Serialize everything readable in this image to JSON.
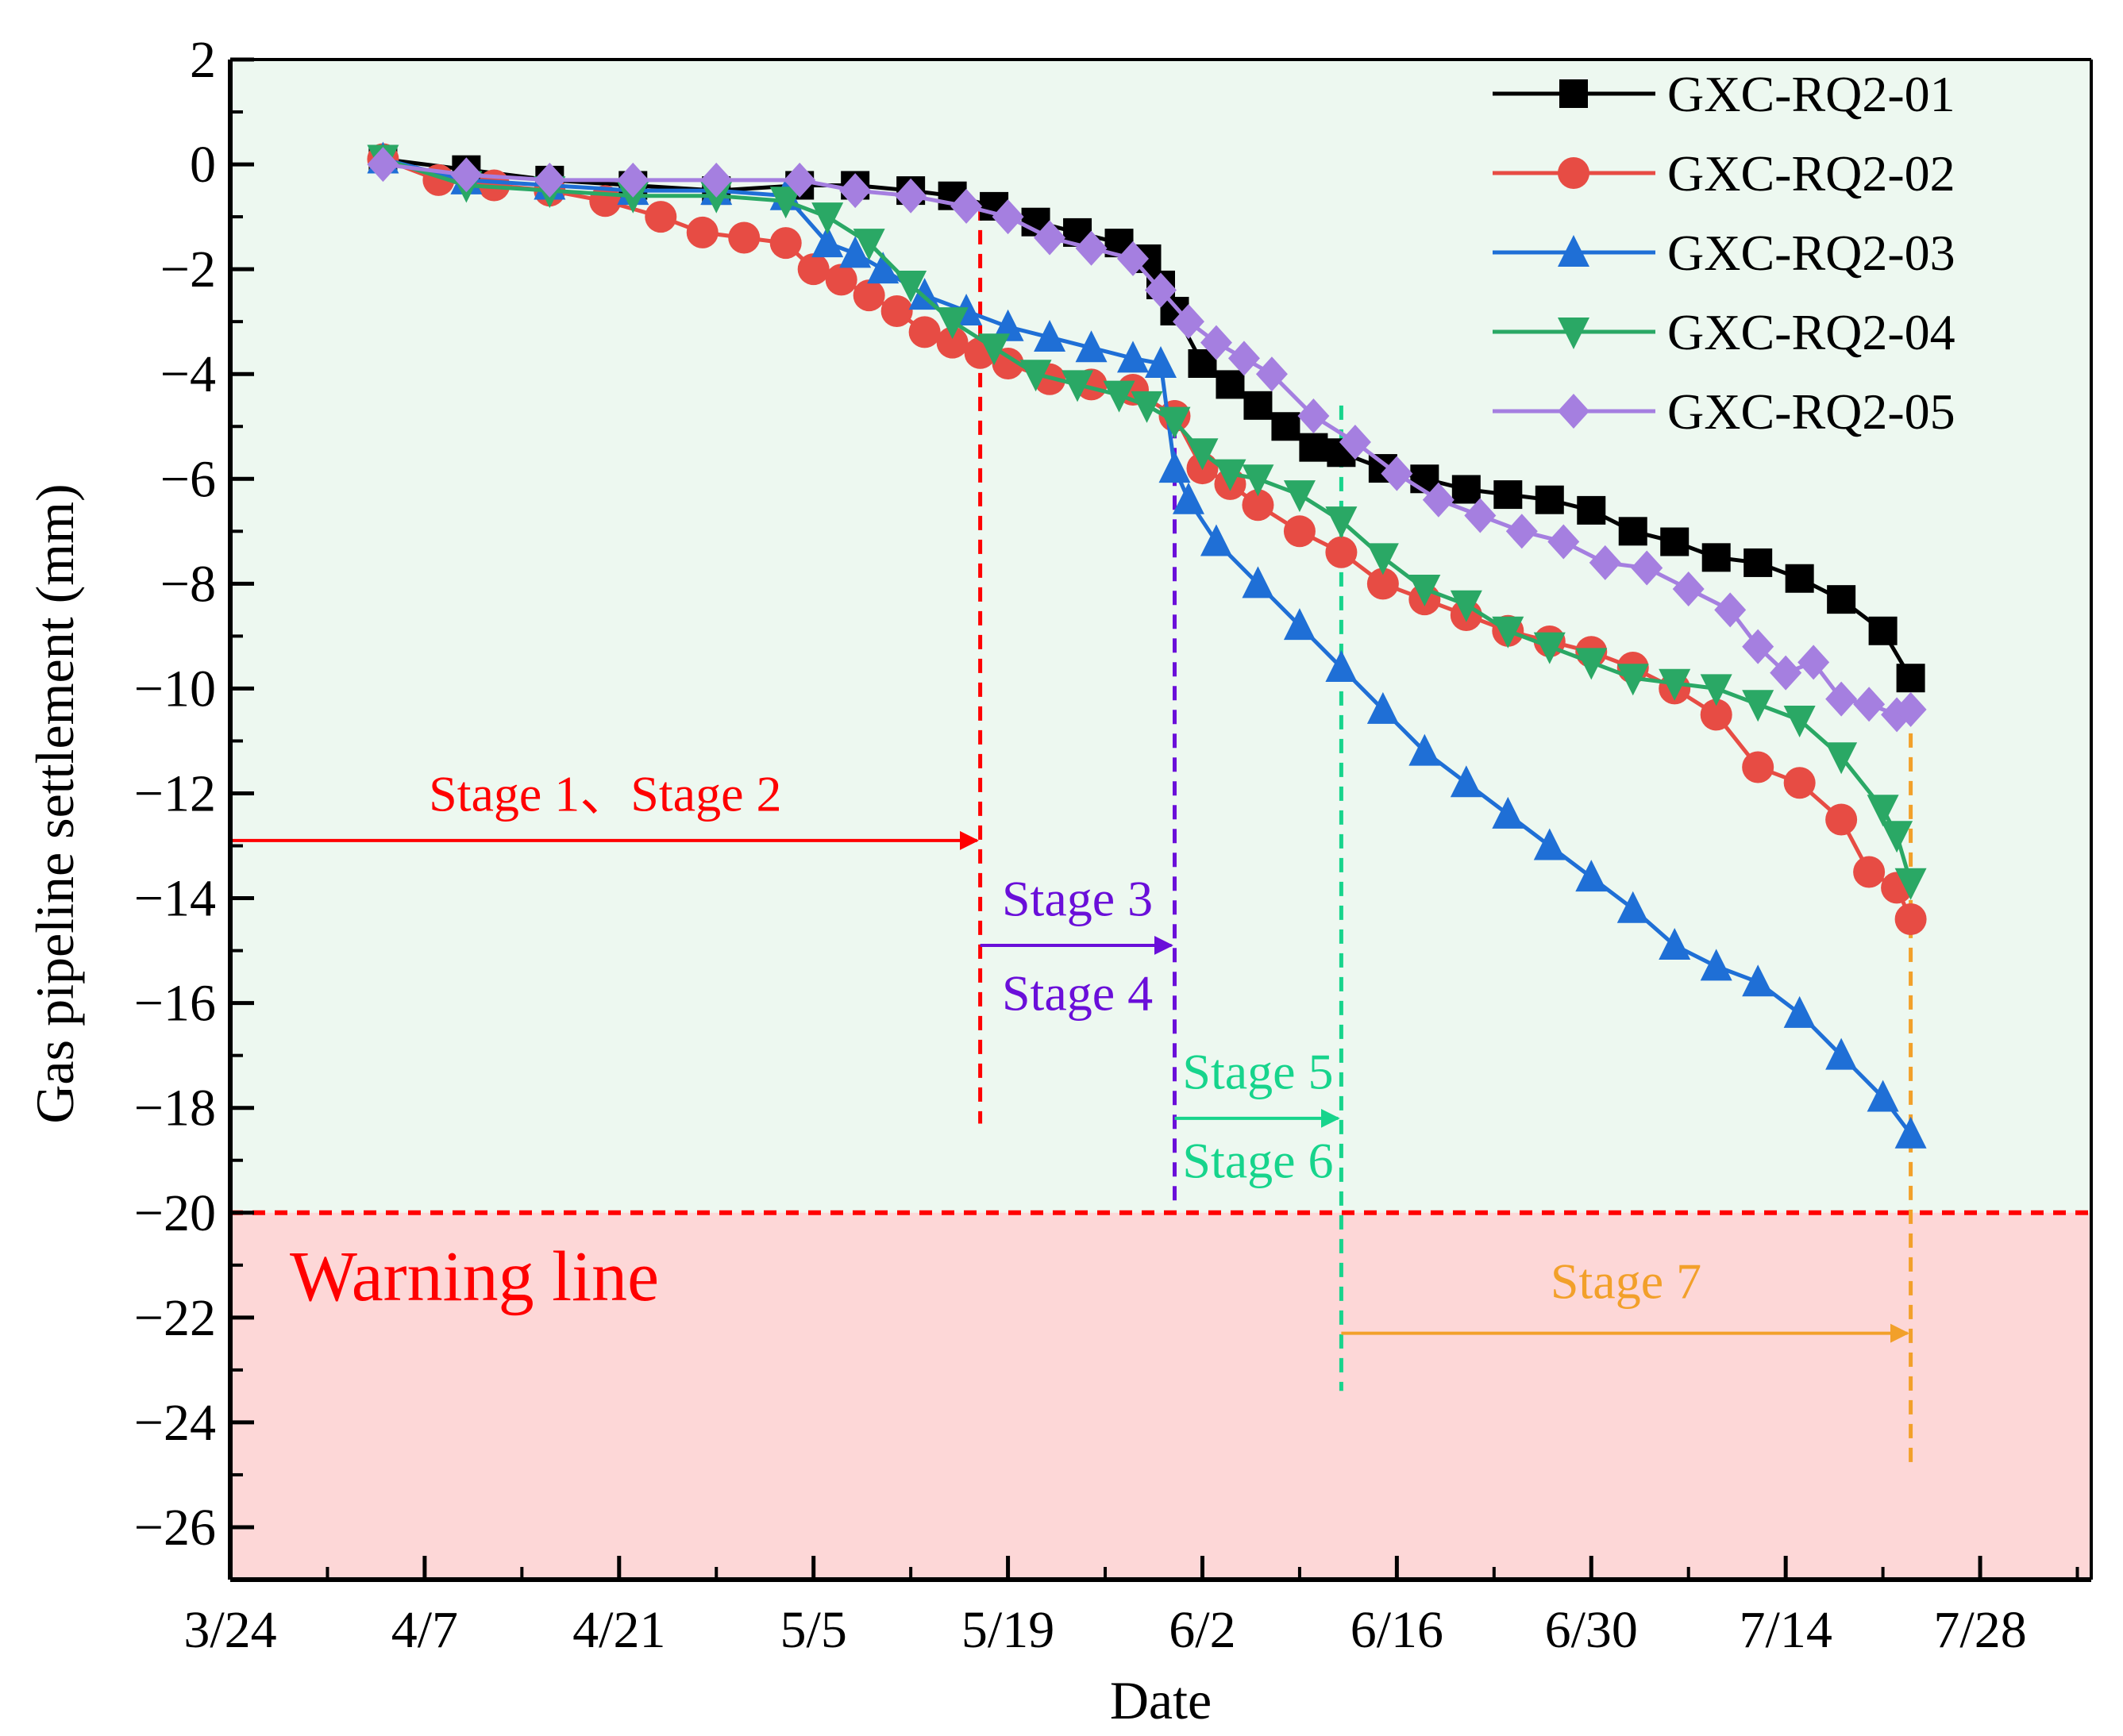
{
  "chart_data": {
    "type": "line",
    "title": "",
    "xlabel": "Date",
    "ylabel": "Gas pipeline settlement (mm)",
    "x_ticks": [
      "3/24",
      "4/7",
      "4/21",
      "5/5",
      "5/19",
      "6/2",
      "6/16",
      "6/30",
      "7/14",
      "7/28"
    ],
    "y_ticks": [
      "2",
      "0",
      "−2",
      "−4",
      "−6",
      "−8",
      "−10",
      "−12",
      "−14",
      "−16",
      "−18",
      "−20",
      "−22",
      "−24",
      "−26"
    ],
    "xlim": [
      "2021-03-24",
      "2021-08-05"
    ],
    "ylim": [
      -27,
      2
    ],
    "grid": false,
    "legend_position": "top-right",
    "background_zones": [
      {
        "name": "safe",
        "from": -20,
        "to": 2,
        "color": "#edf8f0"
      },
      {
        "name": "warning",
        "from": -27,
        "to": -20,
        "color": "#fdd7d7"
      }
    ],
    "warning_line": {
      "y": -20,
      "label": "Warning line",
      "color": "#ff0000"
    },
    "stages": [
      {
        "label": "Stage 1、Stage 2",
        "from": "2021-03-24",
        "to": "2021-05-17",
        "arrow_y": -12.9,
        "label_y": -12.0,
        "color": "#ff0000",
        "line_ymin": -18.3
      },
      {
        "label": "Stage 3",
        "label2": "Stage 4",
        "from": "2021-05-17",
        "to": "2021-05-31",
        "arrow_y": -14.9,
        "label_y": -14.0,
        "label2_y": -15.8,
        "color": "#6a0fd9",
        "line_ymin": -19.8
      },
      {
        "label": "Stage 5",
        "label2": "Stage 6",
        "from": "2021-05-31",
        "to": "2021-06-12",
        "arrow_y": -18.2,
        "label_y": -17.3,
        "label2_y": -19.0,
        "color": "#17d48c",
        "line_ymin": -23.4
      },
      {
        "label": "Stage 7",
        "from": "2021-06-12",
        "to": "2021-07-23",
        "arrow_y": -22.3,
        "label_y": -21.3,
        "color": "#f2a02a",
        "line_ymin": -24.8
      }
    ],
    "series": [
      {
        "name": "GXC-RQ2-01",
        "color": "#000000",
        "marker": "square",
        "x": [
          "2021-04-04",
          "2021-04-10",
          "2021-04-16",
          "2021-04-22",
          "2021-04-28",
          "2021-05-04",
          "2021-05-08",
          "2021-05-12",
          "2021-05-15",
          "2021-05-18",
          "2021-05-21",
          "2021-05-24",
          "2021-05-27",
          "2021-05-29",
          "2021-05-30",
          "2021-05-31",
          "2021-06-02",
          "2021-06-04",
          "2021-06-06",
          "2021-06-08",
          "2021-06-10",
          "2021-06-12",
          "2021-06-15",
          "2021-06-18",
          "2021-06-21",
          "2021-06-24",
          "2021-06-27",
          "2021-06-30",
          "2021-07-03",
          "2021-07-06",
          "2021-07-09",
          "2021-07-12",
          "2021-07-15",
          "2021-07-18",
          "2021-07-21",
          "2021-07-23"
        ],
        "y": [
          0.1,
          -0.1,
          -0.3,
          -0.4,
          -0.5,
          -0.4,
          -0.4,
          -0.5,
          -0.6,
          -0.8,
          -1.1,
          -1.3,
          -1.5,
          -1.8,
          -2.3,
          -2.8,
          -3.8,
          -4.2,
          -4.6,
          -5.0,
          -5.4,
          -5.5,
          -5.8,
          -6.0,
          -6.2,
          -6.3,
          -6.4,
          -6.6,
          -7.0,
          -7.2,
          -7.5,
          -7.6,
          -7.9,
          -8.3,
          -8.9,
          -9.8
        ]
      },
      {
        "name": "GXC-RQ2-02",
        "color": "#e74c44",
        "marker": "circle",
        "x": [
          "2021-04-04",
          "2021-04-08",
          "2021-04-12",
          "2021-04-16",
          "2021-04-20",
          "2021-04-24",
          "2021-04-27",
          "2021-04-30",
          "2021-05-03",
          "2021-05-05",
          "2021-05-07",
          "2021-05-09",
          "2021-05-11",
          "2021-05-13",
          "2021-05-15",
          "2021-05-17",
          "2021-05-19",
          "2021-05-22",
          "2021-05-25",
          "2021-05-28",
          "2021-05-31",
          "2021-06-02",
          "2021-06-04",
          "2021-06-06",
          "2021-06-09",
          "2021-06-12",
          "2021-06-15",
          "2021-06-18",
          "2021-06-21",
          "2021-06-24",
          "2021-06-27",
          "2021-06-30",
          "2021-07-03",
          "2021-07-06",
          "2021-07-09",
          "2021-07-12",
          "2021-07-15",
          "2021-07-18",
          "2021-07-20",
          "2021-07-22",
          "2021-07-23"
        ],
        "y": [
          0.1,
          -0.3,
          -0.4,
          -0.5,
          -0.7,
          -1.0,
          -1.3,
          -1.4,
          -1.5,
          -2.0,
          -2.2,
          -2.5,
          -2.8,
          -3.2,
          -3.4,
          -3.6,
          -3.8,
          -4.1,
          -4.2,
          -4.3,
          -4.8,
          -5.8,
          -6.1,
          -6.5,
          -7.0,
          -7.4,
          -8.0,
          -8.3,
          -8.6,
          -8.9,
          -9.1,
          -9.3,
          -9.6,
          -10.0,
          -10.5,
          -11.5,
          -11.8,
          -12.5,
          -13.5,
          -13.8,
          -14.4
        ]
      },
      {
        "name": "GXC-RQ2-03",
        "color": "#1f6fd6",
        "marker": "triangle-up",
        "x": [
          "2021-04-04",
          "2021-04-10",
          "2021-04-16",
          "2021-04-22",
          "2021-04-28",
          "2021-05-03",
          "2021-05-06",
          "2021-05-08",
          "2021-05-10",
          "2021-05-13",
          "2021-05-16",
          "2021-05-19",
          "2021-05-22",
          "2021-05-25",
          "2021-05-28",
          "2021-05-30",
          "2021-05-31",
          "2021-06-01",
          "2021-06-03",
          "2021-06-06",
          "2021-06-09",
          "2021-06-12",
          "2021-06-15",
          "2021-06-18",
          "2021-06-21",
          "2021-06-24",
          "2021-06-27",
          "2021-06-30",
          "2021-07-03",
          "2021-07-06",
          "2021-07-09",
          "2021-07-12",
          "2021-07-15",
          "2021-07-18",
          "2021-07-21",
          "2021-07-23"
        ],
        "y": [
          0.1,
          -0.3,
          -0.4,
          -0.5,
          -0.5,
          -0.6,
          -1.5,
          -1.7,
          -2.0,
          -2.5,
          -2.8,
          -3.1,
          -3.3,
          -3.5,
          -3.7,
          -3.8,
          -5.8,
          -6.4,
          -7.2,
          -8.0,
          -8.8,
          -9.6,
          -10.4,
          -11.2,
          -11.8,
          -12.4,
          -13.0,
          -13.6,
          -14.2,
          -14.9,
          -15.3,
          -15.6,
          -16.2,
          -17.0,
          -17.8,
          -18.5
        ]
      },
      {
        "name": "GXC-RQ2-04",
        "color": "#2aa865",
        "marker": "triangle-down",
        "x": [
          "2021-04-04",
          "2021-04-10",
          "2021-04-16",
          "2021-04-22",
          "2021-04-28",
          "2021-05-03",
          "2021-05-06",
          "2021-05-09",
          "2021-05-12",
          "2021-05-15",
          "2021-05-18",
          "2021-05-21",
          "2021-05-24",
          "2021-05-27",
          "2021-05-29",
          "2021-05-31",
          "2021-06-02",
          "2021-06-04",
          "2021-06-06",
          "2021-06-09",
          "2021-06-12",
          "2021-06-15",
          "2021-06-18",
          "2021-06-21",
          "2021-06-24",
          "2021-06-27",
          "2021-06-30",
          "2021-07-03",
          "2021-07-06",
          "2021-07-09",
          "2021-07-12",
          "2021-07-15",
          "2021-07-18",
          "2021-07-21",
          "2021-07-22",
          "2021-07-23"
        ],
        "y": [
          0.1,
          -0.4,
          -0.5,
          -0.6,
          -0.6,
          -0.7,
          -1.0,
          -1.5,
          -2.3,
          -3.0,
          -3.5,
          -4.0,
          -4.2,
          -4.4,
          -4.6,
          -4.9,
          -5.5,
          -5.9,
          -6.0,
          -6.3,
          -6.8,
          -7.5,
          -8.1,
          -8.4,
          -8.9,
          -9.2,
          -9.5,
          -9.8,
          -9.9,
          -10.0,
          -10.3,
          -10.6,
          -11.3,
          -12.3,
          -12.8,
          -13.7
        ]
      },
      {
        "name": "GXC-RQ2-05",
        "color": "#a57fe0",
        "marker": "diamond",
        "x": [
          "2021-04-04",
          "2021-04-10",
          "2021-04-16",
          "2021-04-22",
          "2021-04-28",
          "2021-05-04",
          "2021-05-08",
          "2021-05-12",
          "2021-05-16",
          "2021-05-19",
          "2021-05-22",
          "2021-05-25",
          "2021-05-28",
          "2021-05-30",
          "2021-06-01",
          "2021-06-03",
          "2021-06-05",
          "2021-06-07",
          "2021-06-10",
          "2021-06-13",
          "2021-06-16",
          "2021-06-19",
          "2021-06-22",
          "2021-06-25",
          "2021-06-28",
          "2021-07-01",
          "2021-07-04",
          "2021-07-07",
          "2021-07-10",
          "2021-07-12",
          "2021-07-14",
          "2021-07-16",
          "2021-07-18",
          "2021-07-20",
          "2021-07-22",
          "2021-07-23"
        ],
        "y": [
          0.0,
          -0.2,
          -0.3,
          -0.3,
          -0.3,
          -0.3,
          -0.5,
          -0.6,
          -0.8,
          -1.0,
          -1.4,
          -1.6,
          -1.8,
          -2.4,
          -3.0,
          -3.4,
          -3.7,
          -4.0,
          -4.8,
          -5.3,
          -5.9,
          -6.4,
          -6.7,
          -7.0,
          -7.2,
          -7.6,
          -7.7,
          -8.1,
          -8.5,
          -9.2,
          -9.7,
          -9.5,
          -10.2,
          -10.3,
          -10.5,
          -10.4
        ]
      }
    ]
  }
}
